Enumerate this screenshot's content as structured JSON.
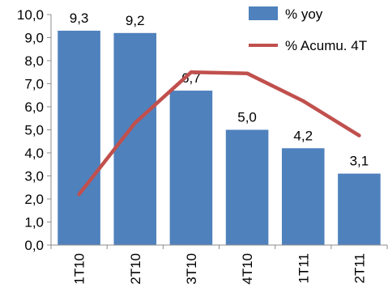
{
  "chart_data": {
    "type": "bar",
    "categories": [
      "1T10",
      "2T10",
      "3T10",
      "4T10",
      "1T11",
      "2T11"
    ],
    "series": [
      {
        "name": "% yoy",
        "type": "bar",
        "values": [
          9.3,
          9.2,
          6.7,
          5.0,
          4.2,
          3.1
        ],
        "data_labels": [
          "9,3",
          "9,2",
          "6,7",
          "5,0",
          "4,2",
          "3,1"
        ],
        "color": "#4f81bd"
      },
      {
        "name": "% Acumu. 4T",
        "type": "line",
        "values": [
          2.2,
          5.3,
          7.5,
          7.45,
          6.25,
          4.75
        ],
        "color": "#c0504d"
      }
    ],
    "ylim": [
      0,
      10
    ],
    "yticks": [
      0,
      1,
      2,
      3,
      4,
      5,
      6,
      7,
      8,
      9,
      10
    ],
    "ytick_labels": [
      "0,0",
      "1,0",
      "2,0",
      "3,0",
      "4,0",
      "5,0",
      "6,0",
      "7,0",
      "8,0",
      "9,0",
      "10,0"
    ],
    "grid": false,
    "legend": "top-right",
    "xlabel": "",
    "ylabel": "",
    "title": ""
  }
}
